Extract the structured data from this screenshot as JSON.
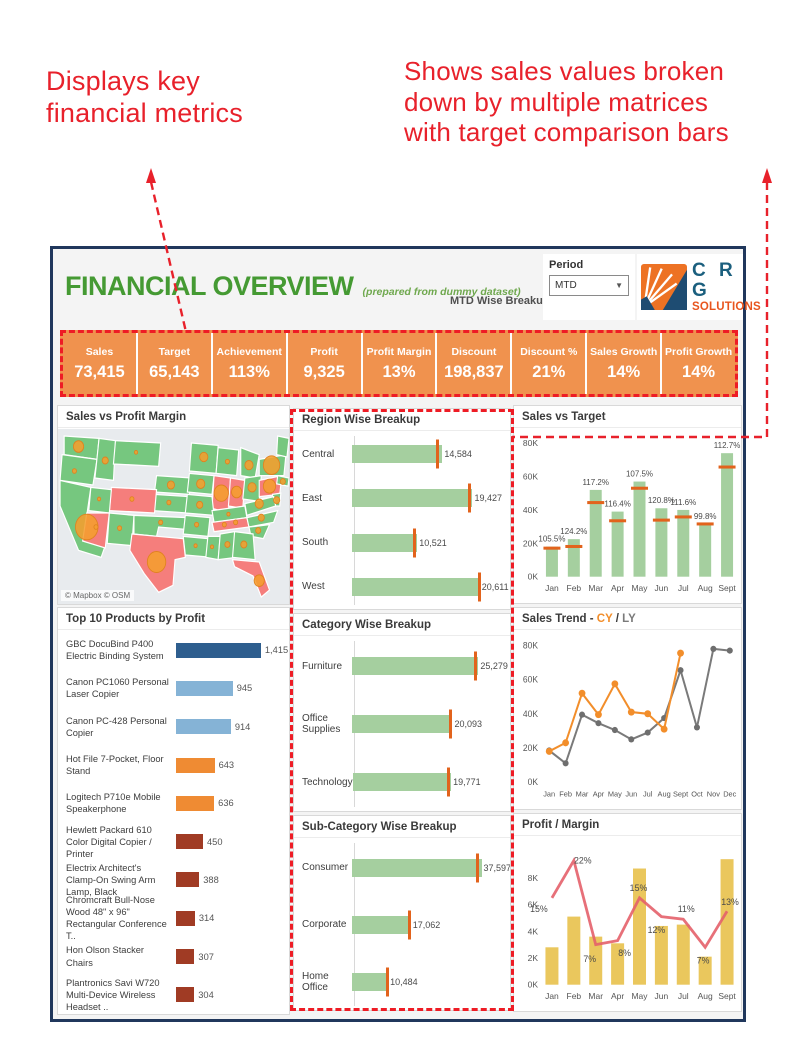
{
  "annotations": {
    "left_line1": "Displays key",
    "left_line2": "financial metrics",
    "right_line1": "Shows sales values broken",
    "right_line2": "down by multiple matrices",
    "right_line3": "with target comparison bars"
  },
  "header": {
    "title": "FINANCIAL OVERVIEW",
    "subtitle": "(prepared from dummy dataset)",
    "breakup_label": "MTD Wise Breakup",
    "period_label": "Period",
    "period_value": "MTD",
    "logo_line1": "C R G",
    "logo_line2": "SOLUTIONS"
  },
  "kpis": [
    {
      "label": "Sales",
      "value": "73,415"
    },
    {
      "label": "Target",
      "value": "65,143"
    },
    {
      "label": "Achievement",
      "value": "113%"
    },
    {
      "label": "Profit",
      "value": "9,325"
    },
    {
      "label": "Profit Margin",
      "value": "13%"
    },
    {
      "label": "Discount",
      "value": "198,837"
    },
    {
      "label": "Discount %",
      "value": "21%"
    },
    {
      "label": "Sales Growth",
      "value": "14%"
    },
    {
      "label": "Profit Growth",
      "value": "14%"
    }
  ],
  "chart_data": [
    {
      "id": "sales_profit_map",
      "type": "map",
      "title": "Sales vs Profit Margin",
      "attribution": "© Mapbox  © OSM",
      "legend_note": "green states = positive margin, pink states = negative margin, orange circles sized by sales"
    },
    {
      "id": "top_products",
      "type": "bar",
      "orientation": "horizontal",
      "title": "Top 10 Products by Profit",
      "categories": [
        "GBC DocuBind P400 Electric Binding System",
        "Canon PC1060 Personal Laser Copier",
        "Canon PC-428 Personal Copier",
        "Hot File 7-Pocket, Floor Stand",
        "Logitech P710e Mobile Speakerphone",
        "Hewlett Packard 610 Color Digital Copier / Printer",
        "Electrix Architect's Clamp-On Swing Arm Lamp, Black",
        "Chromcraft Bull-Nose Wood 48\" x 96\" Rectangular Conference T..",
        "Hon Olson Stacker Chairs",
        "Plantronics Savi W720 Multi-Device Wireless Headset .."
      ],
      "values": [
        1415,
        945,
        914,
        643,
        636,
        450,
        388,
        314,
        307,
        304
      ],
      "value_labels": [
        "1,415",
        "945",
        "914",
        "643",
        "636",
        "450",
        "388",
        "314",
        "307",
        "304"
      ],
      "bar_colors": [
        "#2E5E8E",
        "#85B3D6",
        "#85B3D6",
        "#EF8B33",
        "#EF8B33",
        "#A03B24",
        "#A03B24",
        "#A03B24",
        "#A03B24",
        "#A03B24"
      ],
      "xlim": [
        0,
        1500
      ]
    },
    {
      "id": "region",
      "type": "bar",
      "orientation": "horizontal",
      "title": "Region Wise Breakup",
      "categories": [
        "Central",
        "East",
        "South",
        "West"
      ],
      "values": [
        14584,
        19427,
        10521,
        20611
      ],
      "value_labels": [
        "14,584",
        "19,427",
        "10,521",
        "20,611"
      ],
      "targets": [
        13600,
        18700,
        9850,
        20250
      ],
      "scale_max": 25000
    },
    {
      "id": "category",
      "type": "bar",
      "orientation": "horizontal",
      "title": "Category Wise Breakup",
      "categories": [
        "Furniture",
        "Office Supplies",
        "Technology"
      ],
      "values": [
        25279,
        20093,
        19771
      ],
      "value_labels": [
        "25,279",
        "20,093",
        "19,771"
      ],
      "targets": [
        24300,
        19400,
        18950
      ],
      "scale_max": 31000
    },
    {
      "id": "subcategory",
      "type": "bar",
      "orientation": "horizontal",
      "title": "Sub-Category Wise Breakup",
      "categories": [
        "Consumer",
        "Corporate",
        "Home Office"
      ],
      "values": [
        37597,
        17062,
        10484
      ],
      "value_labels": [
        "37,597",
        "17,062",
        "10,484"
      ],
      "targets": [
        36100,
        16400,
        9900
      ],
      "scale_max": 45000
    },
    {
      "id": "sales_vs_target",
      "type": "bar",
      "title": "Sales vs Target",
      "categories": [
        "Jan",
        "Feb",
        "Mar",
        "Apr",
        "May",
        "Jun",
        "Jul",
        "Aug",
        "Sept"
      ],
      "values": [
        18000,
        22500,
        52000,
        39000,
        57000,
        41000,
        40000,
        31500,
        74000
      ],
      "targets": [
        17100,
        18100,
        44400,
        33500,
        53000,
        33900,
        35800,
        31600,
        65700
      ],
      "pct_labels": [
        "105.5%",
        "124.2%",
        "117.2%",
        "116.4%",
        "107.5%",
        "120.8%",
        "111.6%",
        "99.8%",
        "112.7%"
      ],
      "ylim": [
        0,
        80000
      ],
      "ytick_labels": [
        "0K",
        "20K",
        "40K",
        "60K",
        "80K"
      ]
    },
    {
      "id": "sales_trend",
      "type": "line",
      "title_prefix": "Sales Trend - ",
      "cy_label": "CY",
      "separator": " / ",
      "ly_label": "LY",
      "categories": [
        "Jan",
        "Feb",
        "Mar",
        "Apr",
        "May",
        "Jun",
        "Jul",
        "Aug",
        "Sept",
        "Oct",
        "Nov",
        "Dec"
      ],
      "series": [
        {
          "name": "CY",
          "values": [
            18000,
            23000,
            52000,
            39500,
            57500,
            41000,
            40000,
            31000,
            75500
          ]
        },
        {
          "name": "LY",
          "values": [
            18500,
            11000,
            39500,
            34500,
            30500,
            25000,
            29000,
            37500,
            65500,
            32000,
            78000,
            77000
          ]
        }
      ],
      "ylim": [
        0,
        80000
      ],
      "ytick_labels": [
        "0K",
        "20K",
        "40K",
        "60K",
        "80K"
      ]
    },
    {
      "id": "profit_margin",
      "type": "bar+line",
      "title": "Profit / Margin",
      "categories": [
        "Jan",
        "Feb",
        "Mar",
        "Apr",
        "May",
        "Jun",
        "Jul",
        "Aug",
        "Sept"
      ],
      "series": [
        {
          "name": "Profit",
          "values": [
            2800,
            5100,
            3600,
            3100,
            8700,
            4400,
            4500,
            2100,
            9400
          ]
        },
        {
          "name": "Margin %",
          "values": [
            15,
            22,
            7,
            8,
            15,
            12,
            11,
            7,
            13
          ]
        }
      ],
      "margin_labels": [
        "15%",
        "22%",
        "7%",
        "8%",
        "15%",
        "12%",
        "11%",
        "7%",
        "13%"
      ],
      "margin_line_levels": [
        6500,
        9300,
        3000,
        3300,
        6500,
        5100,
        4900,
        2800,
        5500
      ],
      "ylim": [
        0,
        10000
      ],
      "ytick_labels": [
        "0K",
        "2K",
        "4K",
        "6K",
        "8K"
      ]
    }
  ],
  "colors": {
    "accent_red": "#E8212B",
    "kpi_orange": "#F0924E",
    "bar_green": "#A5CF9F",
    "target_orange": "#E2631C",
    "cy_orange": "#F28E2B",
    "ly_gray": "#7A7A7A",
    "profit_yellow": "#EAC75D",
    "margin_red": "#E4606A",
    "title_green": "#459A33",
    "map_green": "#76C77F",
    "map_pink": "#F57E7C",
    "map_circle_orange": "#F59E2F"
  }
}
